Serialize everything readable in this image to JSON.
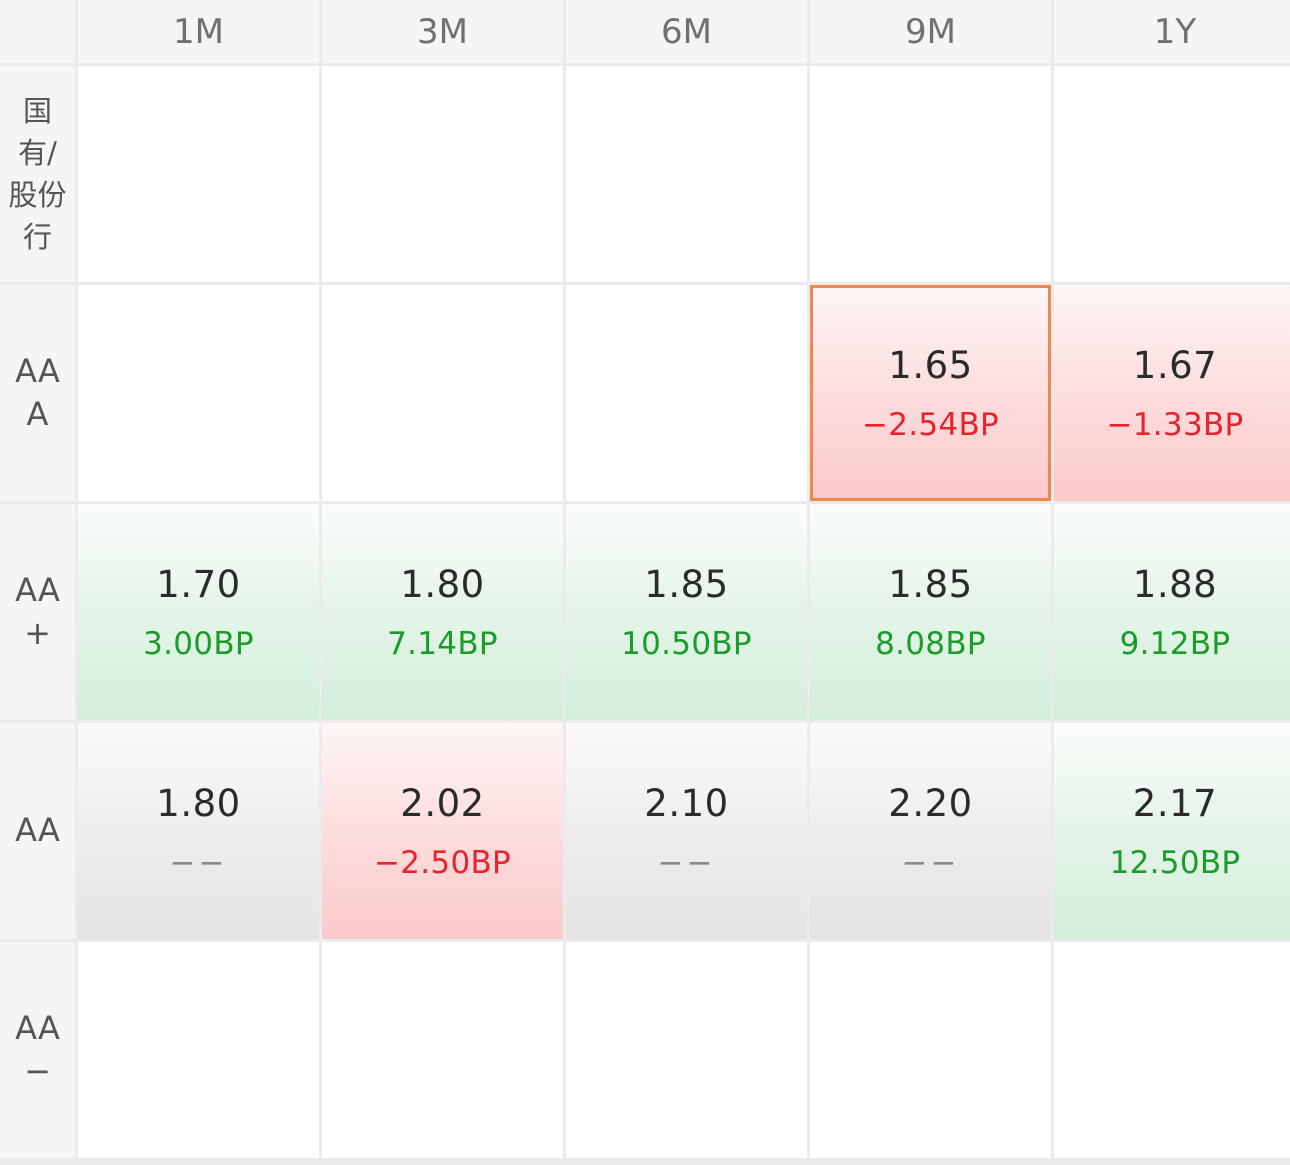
{
  "columns": [
    "1M",
    "3M",
    "6M",
    "9M",
    "1Y"
  ],
  "rows": [
    {
      "label": "国\n有/\n股份\n行",
      "cells": [
        null,
        null,
        null,
        null,
        null
      ]
    },
    {
      "label": "AA\nA",
      "cells": [
        null,
        null,
        null,
        {
          "rate": "1.65",
          "change": "−2.54BP",
          "trend": "down",
          "selected": true
        },
        {
          "rate": "1.67",
          "change": "−1.33BP",
          "trend": "down"
        }
      ]
    },
    {
      "label": "AA\n+",
      "cells": [
        {
          "rate": "1.70",
          "change": "3.00BP",
          "trend": "up"
        },
        {
          "rate": "1.80",
          "change": "7.14BP",
          "trend": "up"
        },
        {
          "rate": "1.85",
          "change": "10.50BP",
          "trend": "up"
        },
        {
          "rate": "1.85",
          "change": "8.08BP",
          "trend": "up"
        },
        {
          "rate": "1.88",
          "change": "9.12BP",
          "trend": "up"
        }
      ]
    },
    {
      "label": "AA",
      "cells": [
        {
          "rate": "1.80",
          "change": "−−",
          "trend": "flat"
        },
        {
          "rate": "2.02",
          "change": "−2.50BP",
          "trend": "down"
        },
        {
          "rate": "2.10",
          "change": "−−",
          "trend": "flat"
        },
        {
          "rate": "2.20",
          "change": "−−",
          "trend": "flat"
        },
        {
          "rate": "2.17",
          "change": "12.50BP",
          "trend": "up"
        }
      ]
    },
    {
      "label": "AA\n−",
      "cells": [
        null,
        null,
        null,
        null,
        null
      ]
    }
  ],
  "colors": {
    "up": "#1a9c2a",
    "down": "#e8232e",
    "selected_border": "#f0874d"
  }
}
